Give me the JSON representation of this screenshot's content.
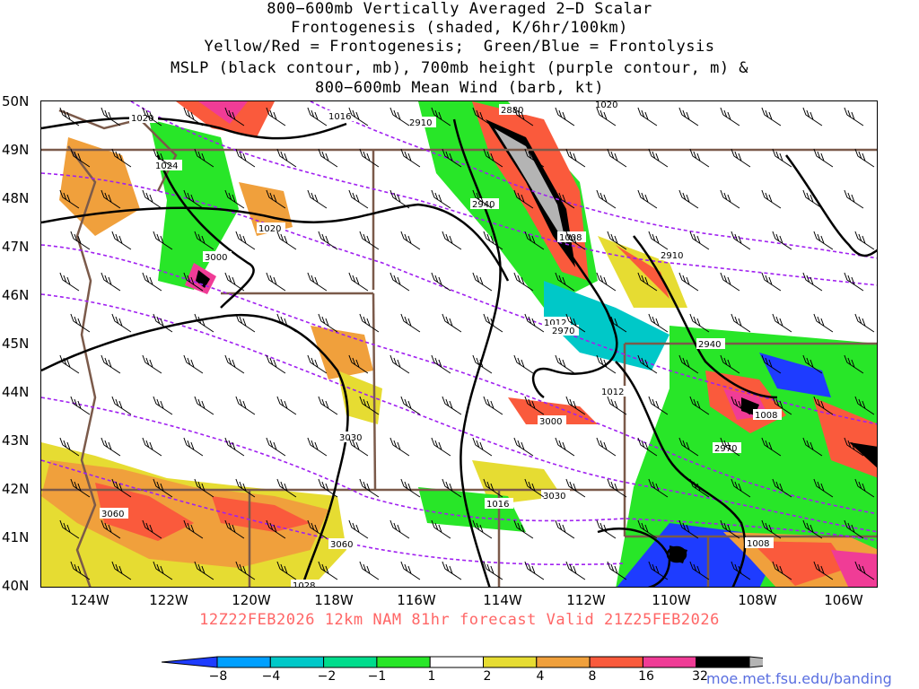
{
  "title": {
    "lines": [
      "800−600mb Vertically Averaged 2−D Scalar",
      "Frontogenesis (shaded, K/6hr/100km)",
      "Yellow/Red = Frontogenesis;  Green/Blue = Frontolysis",
      "MSLP (black contour, mb), 700mb height (purple contour, m) &",
      "800−600mb Mean Wind (barb, kt)"
    ]
  },
  "axes": {
    "lat_labels": [
      "50N",
      "49N",
      "48N",
      "47N",
      "46N",
      "45N",
      "44N",
      "43N",
      "42N",
      "41N",
      "40N"
    ],
    "lon_labels": [
      "124W",
      "122W",
      "120W",
      "118W",
      "116W",
      "114W",
      "112W",
      "110W",
      "108W",
      "106W"
    ]
  },
  "contour_labels": {
    "mslp": [
      "1020",
      "1016",
      "1024",
      "1020",
      "1008",
      "1012",
      "1012",
      "1016",
      "1008",
      "1008",
      "1028",
      "1020"
    ],
    "height": [
      "2910",
      "2880",
      "2940",
      "3000",
      "2910",
      "2970",
      "2940",
      "3000",
      "3030",
      "2970",
      "3030",
      "3060",
      "3060"
    ]
  },
  "forecast": "12Z22FEB2026 12km NAM 81hr forecast Valid 21Z25FEB2026",
  "colorbar": {
    "labels": [
      "−8",
      "−4",
      "−2",
      "−1",
      "1",
      "2",
      "4",
      "8",
      "16",
      "32"
    ],
    "colors": [
      "#1e3cff",
      "#00a0ff",
      "#00c8c8",
      "#00dc8c",
      "#28e628",
      "#ffffff",
      "#e6dc32",
      "#f0a03c",
      "#fa5a3c",
      "#f03c96",
      "#000000",
      "#b4b4b4"
    ]
  },
  "credit": "moe.met.fsu.edu/banding",
  "map_colors": {
    "state_borders": "#7b5a4a",
    "height_contour": "#a020f0",
    "mslp_contour": "#000000"
  }
}
